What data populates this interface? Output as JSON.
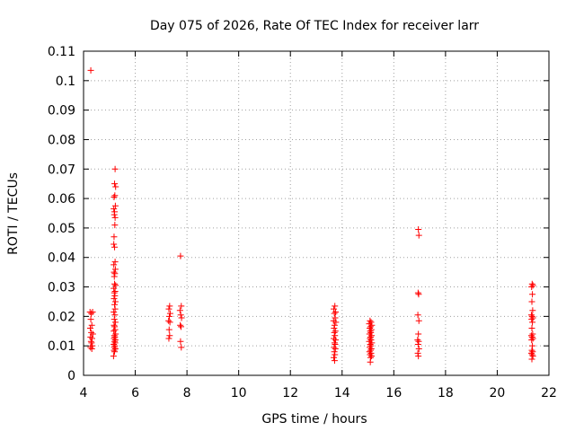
{
  "chart_data": {
    "type": "scatter",
    "title": "Day 075 of 2026, Rate Of TEC Index for receiver larr",
    "xlabel": "GPS time / hours",
    "ylabel": "ROTI / TECUs",
    "xlim": [
      4,
      22
    ],
    "ylim": [
      0,
      0.11
    ],
    "xticks": [
      4,
      6,
      8,
      10,
      12,
      14,
      16,
      18,
      20,
      22
    ],
    "yticks": [
      0,
      0.01,
      0.02,
      0.03,
      0.04,
      0.05,
      0.06,
      0.07,
      0.08,
      0.09,
      0.1,
      0.11
    ],
    "ytick_labels": [
      "0",
      "0.01",
      "0.02",
      "0.03",
      "0.04",
      "0.05",
      "0.06",
      "0.07",
      "0.08",
      "0.09",
      "0.1",
      "0.11"
    ],
    "grid": true,
    "marker": "+",
    "color": "#ff0000",
    "points": [
      {
        "x": 4.28,
        "y": 0.1035
      },
      {
        "x": 4.25,
        "y": 0.0215
      },
      {
        "x": 4.3,
        "y": 0.021
      },
      {
        "x": 4.35,
        "y": 0.0215
      },
      {
        "x": 4.28,
        "y": 0.019
      },
      {
        "x": 4.32,
        "y": 0.017
      },
      {
        "x": 4.26,
        "y": 0.016
      },
      {
        "x": 4.3,
        "y": 0.0145
      },
      {
        "x": 4.36,
        "y": 0.014
      },
      {
        "x": 4.27,
        "y": 0.013
      },
      {
        "x": 4.33,
        "y": 0.0125
      },
      {
        "x": 4.29,
        "y": 0.0115
      },
      {
        "x": 4.31,
        "y": 0.011
      },
      {
        "x": 4.34,
        "y": 0.01
      },
      {
        "x": 4.27,
        "y": 0.0095
      },
      {
        "x": 4.32,
        "y": 0.009
      },
      {
        "x": 5.22,
        "y": 0.07
      },
      {
        "x": 5.2,
        "y": 0.065
      },
      {
        "x": 5.24,
        "y": 0.064
      },
      {
        "x": 5.21,
        "y": 0.061
      },
      {
        "x": 5.18,
        "y": 0.0605
      },
      {
        "x": 5.23,
        "y": 0.0575
      },
      {
        "x": 5.17,
        "y": 0.0565
      },
      {
        "x": 5.2,
        "y": 0.0555
      },
      {
        "x": 5.19,
        "y": 0.0545
      },
      {
        "x": 5.22,
        "y": 0.0535
      },
      {
        "x": 5.21,
        "y": 0.051
      },
      {
        "x": 5.18,
        "y": 0.047
      },
      {
        "x": 5.17,
        "y": 0.0445
      },
      {
        "x": 5.2,
        "y": 0.0435
      },
      {
        "x": 5.22,
        "y": 0.0385
      },
      {
        "x": 5.17,
        "y": 0.0375
      },
      {
        "x": 5.23,
        "y": 0.036
      },
      {
        "x": 5.18,
        "y": 0.035
      },
      {
        "x": 5.21,
        "y": 0.0345
      },
      {
        "x": 5.19,
        "y": 0.0335
      },
      {
        "x": 5.2,
        "y": 0.031
      },
      {
        "x": 5.24,
        "y": 0.0305
      },
      {
        "x": 5.17,
        "y": 0.0295
      },
      {
        "x": 5.22,
        "y": 0.0285
      },
      {
        "x": 5.19,
        "y": 0.028
      },
      {
        "x": 5.21,
        "y": 0.027
      },
      {
        "x": 5.18,
        "y": 0.026
      },
      {
        "x": 5.23,
        "y": 0.025
      },
      {
        "x": 5.2,
        "y": 0.024
      },
      {
        "x": 5.22,
        "y": 0.0225
      },
      {
        "x": 5.17,
        "y": 0.0215
      },
      {
        "x": 5.21,
        "y": 0.0205
      },
      {
        "x": 5.19,
        "y": 0.019
      },
      {
        "x": 5.23,
        "y": 0.018
      },
      {
        "x": 5.18,
        "y": 0.017
      },
      {
        "x": 5.2,
        "y": 0.0165
      },
      {
        "x": 5.22,
        "y": 0.0155
      },
      {
        "x": 5.17,
        "y": 0.015
      },
      {
        "x": 5.24,
        "y": 0.014
      },
      {
        "x": 5.19,
        "y": 0.0135
      },
      {
        "x": 5.21,
        "y": 0.013
      },
      {
        "x": 5.18,
        "y": 0.0125
      },
      {
        "x": 5.23,
        "y": 0.012
      },
      {
        "x": 5.2,
        "y": 0.0115
      },
      {
        "x": 5.22,
        "y": 0.011
      },
      {
        "x": 5.17,
        "y": 0.0105
      },
      {
        "x": 5.21,
        "y": 0.01
      },
      {
        "x": 5.19,
        "y": 0.0095
      },
      {
        "x": 5.23,
        "y": 0.009
      },
      {
        "x": 5.18,
        "y": 0.0085
      },
      {
        "x": 5.2,
        "y": 0.008
      },
      {
        "x": 5.16,
        "y": 0.0065
      },
      {
        "x": 7.33,
        "y": 0.0235
      },
      {
        "x": 7.3,
        "y": 0.0225
      },
      {
        "x": 7.35,
        "y": 0.021
      },
      {
        "x": 7.32,
        "y": 0.02
      },
      {
        "x": 7.29,
        "y": 0.0185
      },
      {
        "x": 7.34,
        "y": 0.018
      },
      {
        "x": 7.31,
        "y": 0.0155
      },
      {
        "x": 7.33,
        "y": 0.0135
      },
      {
        "x": 7.3,
        "y": 0.0125
      },
      {
        "x": 7.75,
        "y": 0.0405
      },
      {
        "x": 7.78,
        "y": 0.0235
      },
      {
        "x": 7.73,
        "y": 0.022
      },
      {
        "x": 7.76,
        "y": 0.0205
      },
      {
        "x": 7.79,
        "y": 0.0195
      },
      {
        "x": 7.74,
        "y": 0.017
      },
      {
        "x": 7.77,
        "y": 0.0165
      },
      {
        "x": 7.75,
        "y": 0.0115
      },
      {
        "x": 7.78,
        "y": 0.0095
      },
      {
        "x": 13.72,
        "y": 0.0235
      },
      {
        "x": 13.68,
        "y": 0.0225
      },
      {
        "x": 13.75,
        "y": 0.0215
      },
      {
        "x": 13.7,
        "y": 0.021
      },
      {
        "x": 13.73,
        "y": 0.0195
      },
      {
        "x": 13.67,
        "y": 0.0185
      },
      {
        "x": 13.76,
        "y": 0.018
      },
      {
        "x": 13.71,
        "y": 0.017
      },
      {
        "x": 13.69,
        "y": 0.016
      },
      {
        "x": 13.74,
        "y": 0.015
      },
      {
        "x": 13.7,
        "y": 0.0145
      },
      {
        "x": 13.72,
        "y": 0.0135
      },
      {
        "x": 13.68,
        "y": 0.0125
      },
      {
        "x": 13.75,
        "y": 0.012
      },
      {
        "x": 13.71,
        "y": 0.011
      },
      {
        "x": 13.73,
        "y": 0.0105
      },
      {
        "x": 13.69,
        "y": 0.0095
      },
      {
        "x": 13.74,
        "y": 0.009
      },
      {
        "x": 13.7,
        "y": 0.008
      },
      {
        "x": 13.72,
        "y": 0.007
      },
      {
        "x": 13.68,
        "y": 0.006
      },
      {
        "x": 13.71,
        "y": 0.005
      },
      {
        "x": 15.08,
        "y": 0.0185
      },
      {
        "x": 15.12,
        "y": 0.018
      },
      {
        "x": 15.05,
        "y": 0.0175
      },
      {
        "x": 15.15,
        "y": 0.017
      },
      {
        "x": 15.1,
        "y": 0.0165
      },
      {
        "x": 15.07,
        "y": 0.016
      },
      {
        "x": 15.13,
        "y": 0.0155
      },
      {
        "x": 15.09,
        "y": 0.015
      },
      {
        "x": 15.11,
        "y": 0.0145
      },
      {
        "x": 15.06,
        "y": 0.014
      },
      {
        "x": 15.14,
        "y": 0.0135
      },
      {
        "x": 15.1,
        "y": 0.013
      },
      {
        "x": 15.08,
        "y": 0.0125
      },
      {
        "x": 15.12,
        "y": 0.012
      },
      {
        "x": 15.05,
        "y": 0.0115
      },
      {
        "x": 15.15,
        "y": 0.011
      },
      {
        "x": 15.09,
        "y": 0.0105
      },
      {
        "x": 15.11,
        "y": 0.01
      },
      {
        "x": 15.07,
        "y": 0.0095
      },
      {
        "x": 15.13,
        "y": 0.009
      },
      {
        "x": 15.1,
        "y": 0.0085
      },
      {
        "x": 15.06,
        "y": 0.008
      },
      {
        "x": 15.12,
        "y": 0.0075
      },
      {
        "x": 15.08,
        "y": 0.007
      },
      {
        "x": 15.14,
        "y": 0.0065
      },
      {
        "x": 15.1,
        "y": 0.006
      },
      {
        "x": 15.09,
        "y": 0.0045
      },
      {
        "x": 16.95,
        "y": 0.0495
      },
      {
        "x": 16.97,
        "y": 0.0475
      },
      {
        "x": 16.94,
        "y": 0.028
      },
      {
        "x": 16.96,
        "y": 0.0275
      },
      {
        "x": 16.93,
        "y": 0.0205
      },
      {
        "x": 16.97,
        "y": 0.0185
      },
      {
        "x": 16.95,
        "y": 0.014
      },
      {
        "x": 16.92,
        "y": 0.012
      },
      {
        "x": 16.96,
        "y": 0.0115
      },
      {
        "x": 16.94,
        "y": 0.0105
      },
      {
        "x": 16.97,
        "y": 0.009
      },
      {
        "x": 16.93,
        "y": 0.0075
      },
      {
        "x": 16.95,
        "y": 0.0065
      },
      {
        "x": 21.35,
        "y": 0.031
      },
      {
        "x": 21.38,
        "y": 0.0305
      },
      {
        "x": 21.33,
        "y": 0.03
      },
      {
        "x": 21.36,
        "y": 0.0275
      },
      {
        "x": 21.34,
        "y": 0.025
      },
      {
        "x": 21.37,
        "y": 0.022
      },
      {
        "x": 21.32,
        "y": 0.0205
      },
      {
        "x": 21.35,
        "y": 0.02
      },
      {
        "x": 21.38,
        "y": 0.0195
      },
      {
        "x": 21.33,
        "y": 0.019
      },
      {
        "x": 21.36,
        "y": 0.018
      },
      {
        "x": 21.34,
        "y": 0.016
      },
      {
        "x": 21.37,
        "y": 0.014
      },
      {
        "x": 21.32,
        "y": 0.0135
      },
      {
        "x": 21.35,
        "y": 0.013
      },
      {
        "x": 21.38,
        "y": 0.0125
      },
      {
        "x": 21.33,
        "y": 0.012
      },
      {
        "x": 21.36,
        "y": 0.01
      },
      {
        "x": 21.34,
        "y": 0.0085
      },
      {
        "x": 21.37,
        "y": 0.008
      },
      {
        "x": 21.32,
        "y": 0.0075
      },
      {
        "x": 21.35,
        "y": 0.007
      },
      {
        "x": 21.38,
        "y": 0.0065
      },
      {
        "x": 21.34,
        "y": 0.0055
      }
    ]
  }
}
